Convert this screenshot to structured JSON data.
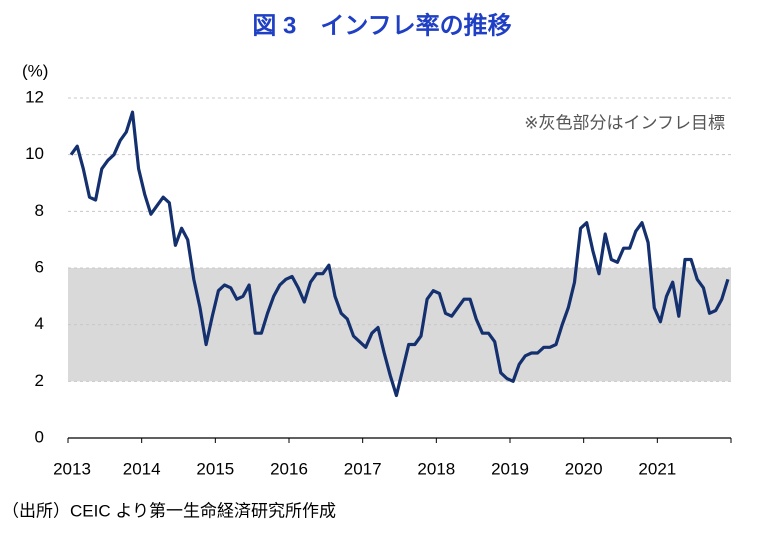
{
  "chart_data": {
    "type": "line",
    "title": "図 3　インフレ率の推移",
    "y_label": "(%)",
    "annotation": "※灰色部分はインフレ目標",
    "source": "（出所）CEIC より第一生命経済研究所作成",
    "categories": [
      "2013",
      null,
      null,
      null,
      null,
      null,
      null,
      null,
      null,
      null,
      null,
      null,
      "2014",
      null,
      null,
      null,
      null,
      null,
      null,
      null,
      null,
      null,
      null,
      null,
      "2015",
      null,
      null,
      null,
      null,
      null,
      null,
      null,
      null,
      null,
      null,
      null,
      "2016",
      null,
      null,
      null,
      null,
      null,
      null,
      null,
      null,
      null,
      null,
      null,
      "2017",
      null,
      null,
      null,
      null,
      null,
      null,
      null,
      null,
      null,
      null,
      null,
      "2018",
      null,
      null,
      null,
      null,
      null,
      null,
      null,
      null,
      null,
      null,
      null,
      "2019",
      null,
      null,
      null,
      null,
      null,
      null,
      null,
      null,
      null,
      null,
      null,
      "2020",
      null,
      null,
      null,
      null,
      null,
      null,
      null,
      null,
      null,
      null,
      null,
      "2021",
      null,
      null,
      null,
      null,
      null,
      null,
      null,
      null,
      null,
      null,
      null
    ],
    "series": [
      {
        "color": "#14306e",
        "values": [
          10.0,
          10.3,
          9.5,
          8.5,
          8.4,
          9.5,
          9.8,
          10.0,
          10.5,
          10.8,
          11.5,
          9.5,
          8.6,
          7.9,
          8.2,
          8.5,
          8.3,
          6.8,
          7.4,
          7.0,
          5.6,
          4.6,
          3.3,
          4.3,
          5.2,
          5.4,
          5.3,
          4.9,
          5.0,
          5.4,
          3.7,
          3.7,
          4.4,
          5.0,
          5.4,
          5.6,
          5.7,
          5.3,
          4.8,
          5.5,
          5.8,
          5.8,
          6.1,
          5.0,
          4.4,
          4.2,
          3.6,
          3.4,
          3.2,
          3.7,
          3.9,
          3.0,
          2.2,
          1.5,
          2.4,
          3.3,
          3.3,
          3.6,
          4.9,
          5.2,
          5.1,
          4.4,
          4.3,
          4.6,
          4.9,
          4.9,
          4.2,
          3.7,
          3.7,
          3.4,
          2.3,
          2.1,
          2.0,
          2.6,
          2.9,
          3.0,
          3.0,
          3.2,
          3.2,
          3.3,
          4.0,
          4.6,
          5.5,
          7.4,
          7.6,
          6.6,
          5.8,
          7.2,
          6.3,
          6.2,
          6.7,
          6.7,
          7.3,
          7.6,
          6.9,
          4.6,
          4.1,
          5.0,
          5.5,
          4.3,
          6.3,
          6.3,
          5.6,
          5.3,
          4.4,
          4.5,
          4.9,
          5.6
        ]
      }
    ],
    "target_band": [
      2,
      6
    ],
    "band_color": "#d9d9d9",
    "ylim": [
      0,
      12
    ],
    "yticks": [
      0,
      2,
      4,
      6,
      8,
      10,
      12
    ],
    "grid": true
  }
}
